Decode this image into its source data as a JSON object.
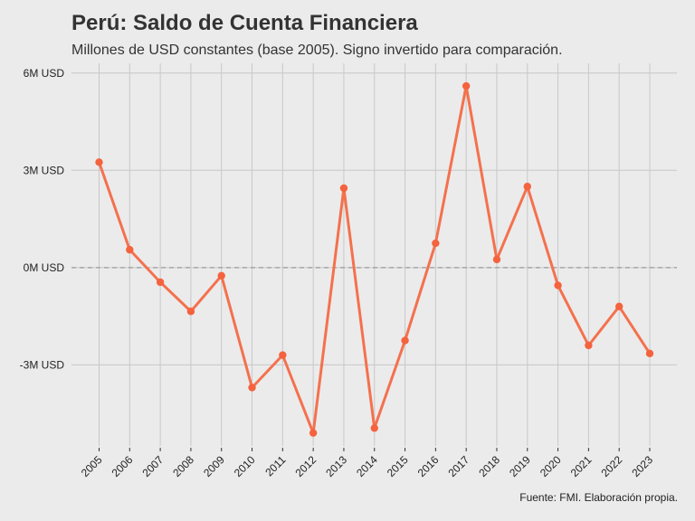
{
  "title": "Perú: Saldo de Cuenta Financiera",
  "subtitle": "Millones de USD constantes (base 2005). Signo invertido para comparación.",
  "caption": "Fuente: FMI. Elaboración propia.",
  "colors": {
    "background": "#ebebeb",
    "line": "#f4714e",
    "point": "#f4633e",
    "grid": "#c8c8c8",
    "zero_line": "#999999"
  },
  "chart_data": {
    "type": "line",
    "title": "Perú: Saldo de Cuenta Financiera",
    "subtitle": "Millones de USD constantes (base 2005). Signo invertido para comparación.",
    "xlabel": "",
    "ylabel": "",
    "x": [
      "2005",
      "2006",
      "2007",
      "2008",
      "2009",
      "2010",
      "2011",
      "2012",
      "2013",
      "2014",
      "2015",
      "2016",
      "2017",
      "2018",
      "2019",
      "2020",
      "2021",
      "2022",
      "2023"
    ],
    "values": [
      3.25,
      0.55,
      -0.45,
      -1.35,
      -0.25,
      -3.7,
      -2.7,
      -5.1,
      2.45,
      -4.95,
      -2.25,
      0.75,
      5.6,
      0.25,
      2.5,
      -0.55,
      -2.4,
      -1.2,
      -2.65
    ],
    "ylim": [
      -5.5,
      6.3
    ],
    "yticks": [
      -3,
      0,
      3,
      6
    ],
    "ytick_labels": [
      "-3M USD",
      "0M USD",
      "3M USD",
      "6M USD"
    ],
    "reference_line": 0,
    "grid": true,
    "legend": "none"
  }
}
